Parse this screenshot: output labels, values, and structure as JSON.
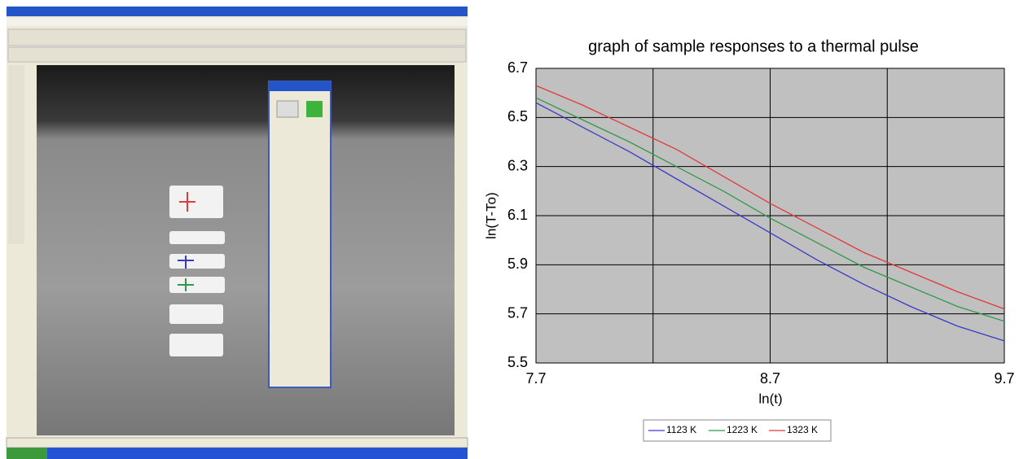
{
  "chart_data": {
    "type": "line",
    "title": "graph of sample responses to a thermal pulse",
    "x_label": "ln(t)",
    "y_label": "ln(T-To)",
    "x": [
      7.7,
      7.9,
      8.1,
      8.3,
      8.5,
      8.7,
      8.9,
      9.1,
      9.3,
      9.5,
      9.7
    ],
    "series": [
      {
        "name": "1123 K",
        "color": "#3a3ac8",
        "values": [
          6.56,
          6.46,
          6.36,
          6.25,
          6.14,
          6.03,
          5.92,
          5.82,
          5.73,
          5.65,
          5.59
        ]
      },
      {
        "name": "1223 K",
        "color": "#2f9a4a",
        "values": [
          6.58,
          6.49,
          6.4,
          6.3,
          6.2,
          6.09,
          5.99,
          5.89,
          5.81,
          5.73,
          5.67
        ]
      },
      {
        "name": "1323 K",
        "color": "#e03a3a",
        "values": [
          6.63,
          6.55,
          6.46,
          6.37,
          6.26,
          6.15,
          6.05,
          5.95,
          5.87,
          5.79,
          5.72
        ]
      }
    ],
    "xlim": [
      7.7,
      9.7
    ],
    "xticks": [
      7.7,
      8.7,
      9.7
    ],
    "x_gridlines": [
      8.2,
      9.2
    ],
    "ylim": [
      5.5,
      6.7
    ],
    "yticks": [
      5.5,
      5.7,
      5.9,
      6.1,
      6.3,
      6.5,
      6.7
    ],
    "grid": true,
    "plot_background": "#c0c0c0",
    "legend": "bottom"
  }
}
